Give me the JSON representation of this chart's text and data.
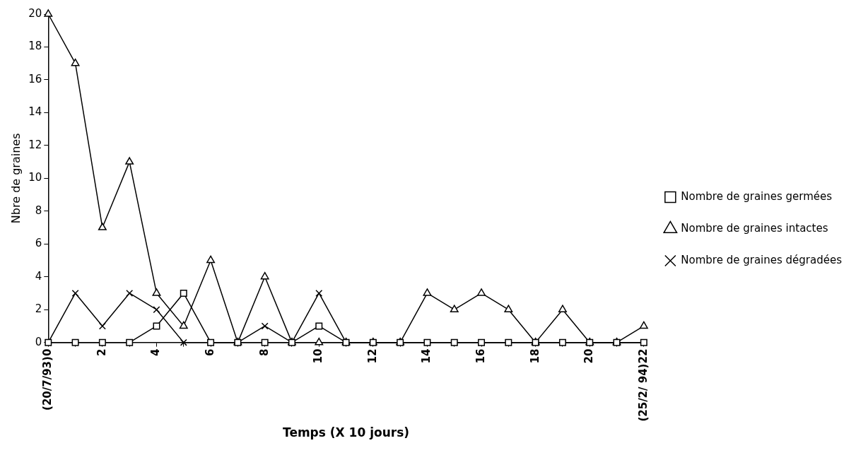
{
  "chart_data": {
    "type": "line",
    "xlabel": "Temps (X 10 jours)",
    "ylabel": "Nbre de graines",
    "x": [
      0,
      1,
      2,
      3,
      4,
      5,
      6,
      7,
      8,
      9,
      10,
      11,
      12,
      13,
      14,
      15,
      16,
      17,
      18,
      19,
      20,
      21,
      22
    ],
    "series": [
      {
        "name": "Nombre de graines germées",
        "color": "#000000",
        "marker": "square",
        "values": [
          0,
          0,
          0,
          0,
          1,
          3,
          0,
          0,
          0,
          0,
          1,
          0,
          0,
          0,
          0,
          0,
          0,
          0,
          0,
          0,
          0,
          0,
          0
        ]
      },
      {
        "name": "Nombre de graines intactes",
        "color": "#000000",
        "marker": "triangle",
        "values": [
          20,
          17,
          7,
          11,
          3,
          1,
          5,
          0,
          4,
          0,
          0,
          0,
          0,
          0,
          3,
          2,
          3,
          2,
          0,
          2,
          0,
          0,
          1
        ]
      },
      {
        "name": "Nombre de graines dégradées",
        "color": "#000000",
        "marker": "cross",
        "values": [
          0,
          3,
          1,
          3,
          2,
          0,
          0,
          0,
          1,
          0,
          3,
          0,
          0,
          0,
          0,
          0,
          0,
          0,
          0,
          0,
          0,
          0,
          0
        ]
      }
    ],
    "xlim": [
      0,
      22
    ],
    "xticks": [
      {
        "value": 0,
        "label": "(20/7/93)0"
      },
      {
        "value": 1,
        "label": null
      },
      2,
      {
        "value": 3,
        "label": null
      },
      4,
      {
        "value": 5,
        "label": null
      },
      6,
      {
        "value": 7,
        "label": null
      },
      8,
      {
        "value": 9,
        "label": null
      },
      10,
      {
        "value": 11,
        "label": null
      },
      12,
      {
        "value": 13,
        "label": null
      },
      14,
      {
        "value": 15,
        "label": null
      },
      16,
      {
        "value": 17,
        "label": null
      },
      18,
      {
        "value": 19,
        "label": null
      },
      20,
      {
        "value": 21,
        "label": null
      },
      {
        "value": 22,
        "label": "(25/2/ 94)22"
      }
    ],
    "ylim": [
      0,
      20
    ],
    "yticks": [
      0,
      2,
      4,
      6,
      8,
      10,
      12,
      14,
      16,
      18,
      20
    ],
    "grid": false,
    "legend": "right",
    "line_style": "solid"
  }
}
